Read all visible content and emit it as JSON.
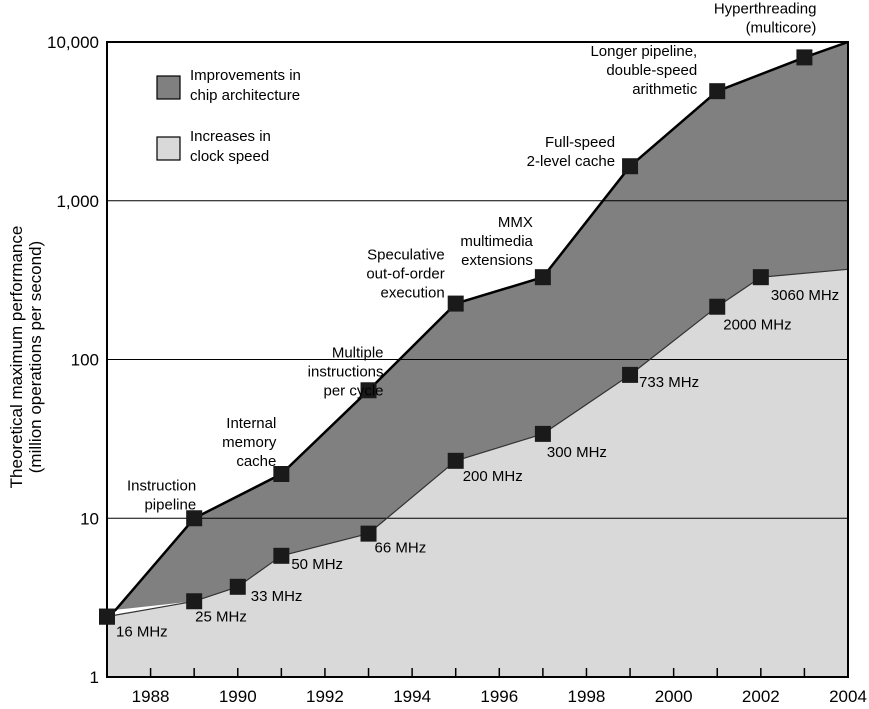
{
  "chart_data": {
    "type": "area",
    "y_scale": "log",
    "ylim": [
      1,
      10000
    ],
    "xlim": [
      1987,
      2004
    ],
    "xlabel": "",
    "ylabel_lines": [
      "Theoretical maximum performance",
      "(million operations per second)"
    ],
    "y_ticks": [
      {
        "value": 1,
        "label": "1"
      },
      {
        "value": 10,
        "label": "10"
      },
      {
        "value": 100,
        "label": "100"
      },
      {
        "value": 1000,
        "label": "1,000"
      },
      {
        "value": 10000,
        "label": "10,000"
      }
    ],
    "x_ticks": [
      {
        "value": 1988,
        "label": "1988"
      },
      {
        "value": 1990,
        "label": "1990"
      },
      {
        "value": 1992,
        "label": "1992"
      },
      {
        "value": 1994,
        "label": "1994"
      },
      {
        "value": 1996,
        "label": "1996"
      },
      {
        "value": 1998,
        "label": "1998"
      },
      {
        "value": 2000,
        "label": "2000"
      },
      {
        "value": 2002,
        "label": "2002"
      },
      {
        "value": 2004,
        "label": "2004"
      }
    ],
    "gridlines": [
      10,
      100,
      1000
    ],
    "colors": {
      "architecture": "#808080",
      "clock": "#d9d9d9",
      "marker": "#1a1a1a"
    },
    "legend": [
      {
        "lines": [
          "Improvements in",
          "chip architecture"
        ],
        "color": "#808080"
      },
      {
        "lines": [
          "Increases in",
          "clock speed"
        ],
        "color": "#d9d9d9"
      }
    ],
    "legend_position": "top-left",
    "architecture_series": [
      {
        "x": 1987,
        "y": 2.4,
        "label_lines": []
      },
      {
        "x": 1989,
        "y": 10,
        "label_lines": [
          "Instruction",
          "pipeline"
        ]
      },
      {
        "x": 1991,
        "y": 19,
        "label_lines": [
          "Internal",
          "memory",
          "cache"
        ]
      },
      {
        "x": 1993,
        "y": 64,
        "label_lines": [
          "Multiple",
          "instructions",
          "per cycle"
        ]
      },
      {
        "x": 1995,
        "y": 225,
        "label_lines": [
          "Speculative",
          "out-of-order",
          "execution"
        ]
      },
      {
        "x": 1997,
        "y": 330,
        "label_lines": [
          "MMX",
          "multimedia",
          "extensions"
        ]
      },
      {
        "x": 1999,
        "y": 1650,
        "label_lines": [
          "Full-speed",
          "2-level cache"
        ]
      },
      {
        "x": 2001,
        "y": 4900,
        "label_lines": [
          "Longer pipeline,",
          "double-speed",
          "arithmetic"
        ]
      },
      {
        "x": 2003,
        "y": 8000,
        "label_lines": [
          "Hyperthreading",
          "(multicore)"
        ]
      }
    ],
    "architecture_extent": [
      {
        "x": 1987.2,
        "y": 2.65
      },
      {
        "x": 2004,
        "y": 10000
      }
    ],
    "clock_series": [
      {
        "x": 1987,
        "y": 2.4,
        "label": "16 MHz"
      },
      {
        "x": 1989,
        "y": 3,
        "label": "25 MHz"
      },
      {
        "x": 1990,
        "y": 3.7,
        "label": "33 MHz"
      },
      {
        "x": 1991,
        "y": 5.8,
        "label": "50 MHz"
      },
      {
        "x": 1993,
        "y": 8,
        "label": "66 MHz"
      },
      {
        "x": 1995,
        "y": 23,
        "label": "200 MHz"
      },
      {
        "x": 1997,
        "y": 34,
        "label": "300 MHz"
      },
      {
        "x": 1999,
        "y": 80,
        "label": "733 MHz"
      },
      {
        "x": 2001,
        "y": 215,
        "label": "2000 MHz"
      },
      {
        "x": 2002,
        "y": 330,
        "label": "3060 MHz"
      }
    ],
    "clock_extent": [
      {
        "x": 2004,
        "y": 370
      }
    ]
  }
}
